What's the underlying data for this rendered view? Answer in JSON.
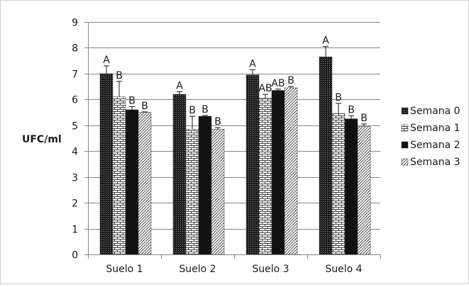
{
  "chart_data": {
    "type": "bar",
    "title": "",
    "xlabel": "",
    "ylabel": "UFC/ml",
    "ylim": [
      0,
      9
    ],
    "yticks": [
      0,
      1,
      2,
      3,
      4,
      5,
      6,
      7,
      8,
      9
    ],
    "grid": true,
    "legend_position": "right",
    "categories": [
      "Suelo 1",
      "Suelo 2",
      "Suelo 3",
      "Suelo 4"
    ],
    "series": [
      {
        "name": "Semana 0",
        "pattern": "dots-dark",
        "values": [
          7.0,
          6.2,
          6.95,
          7.65
        ],
        "errors": [
          0.3,
          0.1,
          0.2,
          0.4
        ],
        "letters": [
          "A",
          "A",
          "A",
          "A"
        ]
      },
      {
        "name": "Semana 1",
        "pattern": "bricks-light",
        "values": [
          6.1,
          4.85,
          6.05,
          5.45
        ],
        "errors": [
          0.6,
          0.5,
          0.15,
          0.4
        ],
        "letters": [
          "B",
          "B",
          "AB",
          "B"
        ]
      },
      {
        "name": "Semana 2",
        "pattern": "solid-black",
        "values": [
          5.6,
          5.35,
          6.35,
          5.25
        ],
        "errors": [
          0.12,
          0.03,
          0.05,
          0.12
        ],
        "letters": [
          "B",
          "B",
          "AB",
          "B"
        ]
      },
      {
        "name": "Semana 3",
        "pattern": "diagonal-light",
        "values": [
          5.5,
          4.85,
          6.45,
          4.95
        ],
        "errors": [
          0.02,
          0.06,
          0.05,
          0.1
        ],
        "letters": [
          "B",
          "B",
          "B",
          "B"
        ]
      }
    ],
    "colors": {
      "axis": "#868686",
      "grid": "#868686",
      "dark": "#1a1a1a"
    }
  }
}
